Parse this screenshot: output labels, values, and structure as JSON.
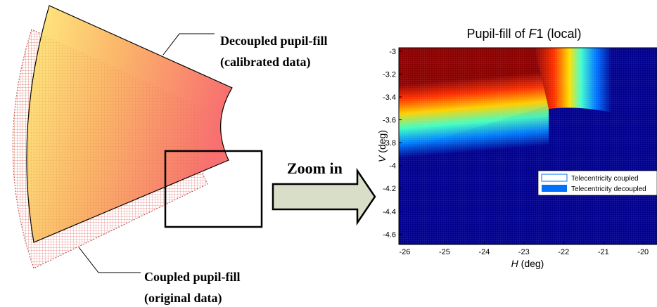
{
  "annotations": {
    "decoupled": [
      "Decoupled pupil-fill",
      "(calibrated data)"
    ],
    "coupled": [
      "Coupled pupil-fill",
      "(original data)"
    ],
    "arrow": "Zoom in"
  },
  "plot": {
    "title": [
      "Pupil-fill of ",
      "F",
      "1 (local)"
    ],
    "xlabel": [
      "H",
      " (deg)"
    ],
    "ylabel": [
      "V",
      " (deg)"
    ],
    "xlim": [
      -26.15,
      -19.65
    ],
    "xticks": [
      -26,
      -25,
      -24,
      -23,
      -22,
      -21,
      -20
    ],
    "ylim": [
      -4.69,
      -2.97
    ],
    "yticks": [
      -3,
      -3.2,
      -3.4,
      -3.6,
      -3.8,
      -4,
      -4.2,
      -4.4,
      -4.6
    ],
    "legend": [
      "Telecentricity coupled",
      "Telecentricity decoupled"
    ]
  }
}
